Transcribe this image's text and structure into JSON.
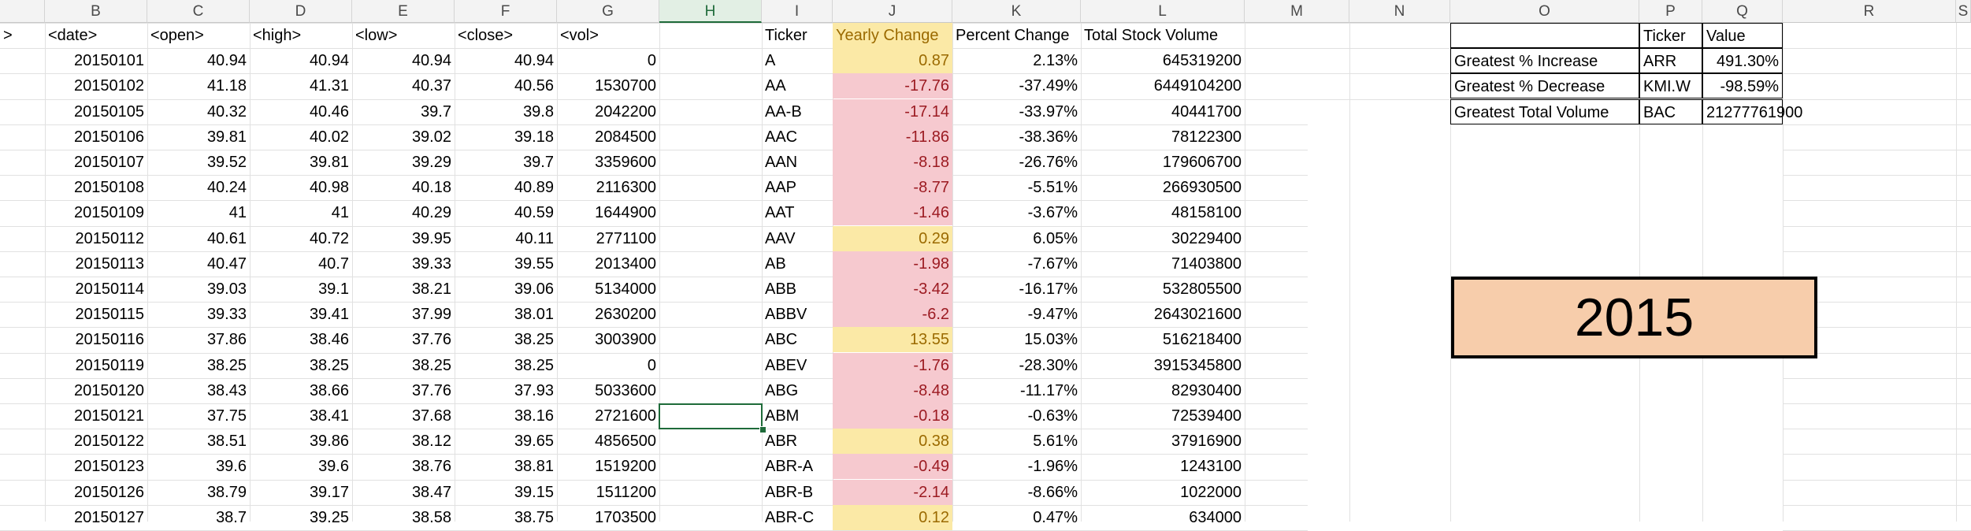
{
  "columns": [
    "B",
    "C",
    "D",
    "E",
    "F",
    "G",
    "H",
    "I",
    "J",
    "K",
    "L",
    "M",
    "N",
    "O",
    "P",
    "Q",
    "R",
    "S"
  ],
  "data_headers": [
    "<date>",
    "<open>",
    "<high>",
    "<low>",
    "<close>",
    "<vol>"
  ],
  "data_rows": [
    [
      "20150101",
      "40.94",
      "40.94",
      "40.94",
      "40.94",
      "0"
    ],
    [
      "20150102",
      "41.18",
      "41.31",
      "40.37",
      "40.56",
      "1530700"
    ],
    [
      "20150105",
      "40.32",
      "40.46",
      "39.7",
      "39.8",
      "2042200"
    ],
    [
      "20150106",
      "39.81",
      "40.02",
      "39.02",
      "39.18",
      "2084500"
    ],
    [
      "20150107",
      "39.52",
      "39.81",
      "39.29",
      "39.7",
      "3359600"
    ],
    [
      "20150108",
      "40.24",
      "40.98",
      "40.18",
      "40.89",
      "2116300"
    ],
    [
      "20150109",
      "41",
      "41",
      "40.29",
      "40.59",
      "1644900"
    ],
    [
      "20150112",
      "40.61",
      "40.72",
      "39.95",
      "40.11",
      "2771100"
    ],
    [
      "20150113",
      "40.47",
      "40.7",
      "39.33",
      "39.55",
      "2013400"
    ],
    [
      "20150114",
      "39.03",
      "39.1",
      "38.21",
      "39.06",
      "5134000"
    ],
    [
      "20150115",
      "39.33",
      "39.41",
      "37.99",
      "38.01",
      "2630200"
    ],
    [
      "20150116",
      "37.86",
      "38.46",
      "37.76",
      "38.25",
      "3003900"
    ],
    [
      "20150119",
      "38.25",
      "38.25",
      "38.25",
      "38.25",
      "0"
    ],
    [
      "20150120",
      "38.43",
      "38.66",
      "37.76",
      "37.93",
      "5033600"
    ],
    [
      "20150121",
      "37.75",
      "38.41",
      "37.68",
      "38.16",
      "2721600"
    ],
    [
      "20150122",
      "38.51",
      "39.86",
      "38.12",
      "39.65",
      "4856500"
    ],
    [
      "20150123",
      "39.6",
      "39.6",
      "38.76",
      "38.81",
      "1519200"
    ],
    [
      "20150126",
      "38.79",
      "39.17",
      "38.47",
      "39.15",
      "1511200"
    ],
    [
      "20150127",
      "38.7",
      "39.25",
      "38.58",
      "38.75",
      "1703500"
    ]
  ],
  "summary_headers": [
    "Ticker",
    "Yearly Change",
    "Percent Change",
    "Total Stock Volume"
  ],
  "summary_rows": [
    [
      "A",
      "0.87",
      "2.13%",
      "645319200"
    ],
    [
      "AA",
      "-17.76",
      "-37.49%",
      "6449104200"
    ],
    [
      "AA-B",
      "-17.14",
      "-33.97%",
      "40441700"
    ],
    [
      "AAC",
      "-11.86",
      "-38.36%",
      "78122300"
    ],
    [
      "AAN",
      "-8.18",
      "-26.76%",
      "179606700"
    ],
    [
      "AAP",
      "-8.77",
      "-5.51%",
      "266930500"
    ],
    [
      "AAT",
      "-1.46",
      "-3.67%",
      "48158100"
    ],
    [
      "AAV",
      "0.29",
      "6.05%",
      "30229400"
    ],
    [
      "AB",
      "-1.98",
      "-7.67%",
      "71403800"
    ],
    [
      "ABB",
      "-3.42",
      "-16.17%",
      "532805500"
    ],
    [
      "ABBV",
      "-6.2",
      "-9.47%",
      "2643021600"
    ],
    [
      "ABC",
      "13.55",
      "15.03%",
      "516218400"
    ],
    [
      "ABEV",
      "-1.76",
      "-28.30%",
      "3915345800"
    ],
    [
      "ABG",
      "-8.48",
      "-11.17%",
      "82930400"
    ],
    [
      "ABM",
      "-0.18",
      "-0.63%",
      "72539400"
    ],
    [
      "ABR",
      "0.38",
      "5.61%",
      "37916900"
    ],
    [
      "ABR-A",
      "-0.49",
      "-1.96%",
      "1243100"
    ],
    [
      "ABR-B",
      "-2.14",
      "-8.66%",
      "1022000"
    ],
    [
      "ABR-C",
      "0.12",
      "0.47%",
      "634000"
    ]
  ],
  "greatest_headers": [
    "Ticker",
    "Value"
  ],
  "greatest_rows": [
    [
      "Greatest % Increase",
      "ARR",
      "491.30%"
    ],
    [
      "Greatest % Decrease",
      "KMI.W",
      "-98.59%"
    ],
    [
      "Greatest Total Volume",
      "BAC",
      "21277761900"
    ]
  ],
  "year_label": "2015",
  "colors": {
    "negative_fill": "#f6c9cf",
    "negative_text": "#9c1b22",
    "positive_fill": "#fbe9a6",
    "positive_text": "#9b6a00",
    "year_box_fill": "#f7cdab",
    "selection": "#1f6b3a"
  }
}
